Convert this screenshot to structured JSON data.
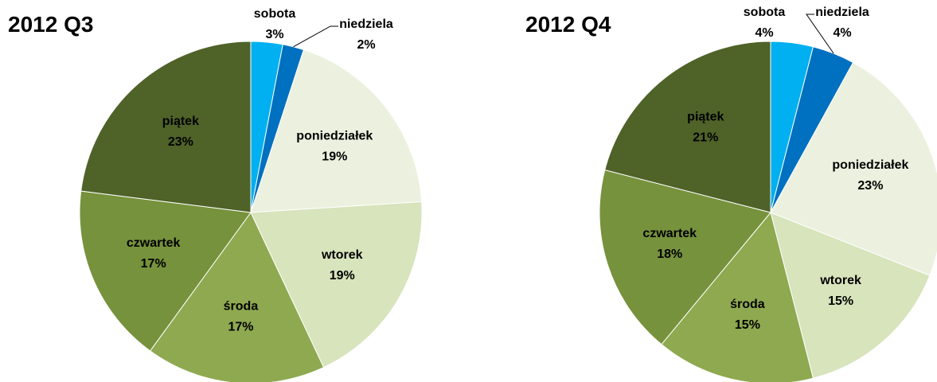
{
  "chart_data": [
    {
      "type": "pie",
      "title": "2012 Q3",
      "categories": [
        "sobota",
        "niedziela",
        "poniedziałek",
        "wtorek",
        "środa",
        "czwartek",
        "piątek"
      ],
      "values": [
        3,
        2,
        19,
        19,
        17,
        17,
        23
      ],
      "value_labels": [
        "3%",
        "2%",
        "19%",
        "19%",
        "17%",
        "17%",
        "23%"
      ],
      "colors": [
        "#00b0f0",
        "#0070c0",
        "#ebf1de",
        "#d7e4bc",
        "#8ea94f",
        "#76923c",
        "#4f6228"
      ]
    },
    {
      "type": "pie",
      "title": "2012 Q4",
      "categories": [
        "sobota",
        "niedziela",
        "poniedziałek",
        "wtorek",
        "środa",
        "czwartek",
        "piątek"
      ],
      "values": [
        4,
        4,
        23,
        15,
        15,
        18,
        21
      ],
      "value_labels": [
        "4%",
        "4%",
        "23%",
        "15%",
        "15%",
        "18%",
        "21%"
      ],
      "colors": [
        "#00b0f0",
        "#0070c0",
        "#ebf1de",
        "#d7e4bc",
        "#8ea94f",
        "#76923c",
        "#4f6228"
      ]
    }
  ]
}
